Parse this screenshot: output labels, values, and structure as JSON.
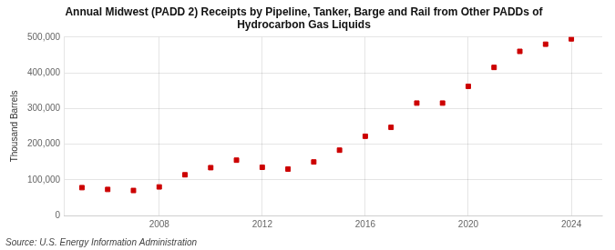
{
  "chart_data": {
    "type": "scatter",
    "title": "Annual Midwest (PADD 2) Receipts by Pipeline, Tanker, Barge and Rail from Other PADDs of\nHydrocarbon Gas Liquids",
    "y_label": "Thousand Barrels",
    "annotation": "Source: U.S. Energy Information Administration",
    "x": [
      2005,
      2006,
      2007,
      2008,
      2009,
      2010,
      2011,
      2012,
      2013,
      2014,
      2015,
      2016,
      2017,
      2018,
      2019,
      2020,
      2021,
      2022,
      2023,
      2024
    ],
    "values": [
      78000,
      73000,
      70000,
      80000,
      114000,
      134000,
      155000,
      135000,
      130000,
      150000,
      183000,
      222000,
      247000,
      315000,
      315000,
      362000,
      415000,
      460000,
      480000,
      495000
    ],
    "color": "#cc0000",
    "marker": "square",
    "xlim": [
      2004.3,
      2025.2
    ],
    "xticks": [
      2008,
      2012,
      2016,
      2020,
      2024
    ],
    "ylim": [
      0,
      500000
    ],
    "yticks": [
      0,
      {
        "value": 100000,
        "label": "100,000"
      },
      {
        "value": 200000,
        "label": "200,000"
      },
      {
        "value": 300000,
        "label": "300,000"
      },
      {
        "value": 400000,
        "label": "400,000"
      },
      {
        "value": 500000,
        "label": "500,000"
      }
    ],
    "grid": true
  }
}
